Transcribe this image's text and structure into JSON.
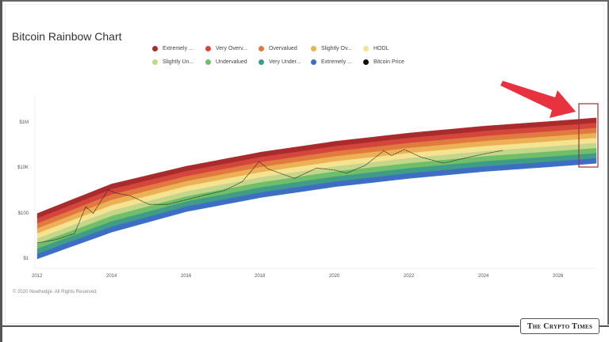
{
  "page": {
    "title": "Bitcoin Rainbow Chart",
    "copyright": "© 2020 Newhedge. All Rights Reserved.",
    "watermark": "The Crypto Times"
  },
  "legend": [
    {
      "label": "Extremely ...",
      "color": "#a92b2b"
    },
    {
      "label": "Very Overv...",
      "color": "#d4453c"
    },
    {
      "label": "Overvalued",
      "color": "#e07a3e"
    },
    {
      "label": "Slightly Ov...",
      "color": "#ecb155"
    },
    {
      "label": "HODL",
      "color": "#f4e391"
    },
    {
      "label": "Slightly Un...",
      "color": "#c4d68a"
    },
    {
      "label": "Undervalued",
      "color": "#6fbe6a"
    },
    {
      "label": "Very Under...",
      "color": "#3f9c86"
    },
    {
      "label": "Extremely ...",
      "color": "#3e6ec3"
    },
    {
      "label": "Bitcoin Price",
      "color": "#111111"
    }
  ],
  "annotation": {
    "arrow_color": "#e8323f",
    "highlight_box_color": "#9b2f3a",
    "note": "Red arrow pointing to highlighted right edge of rainbow bands (~2027)"
  },
  "chart_data": {
    "type": "area",
    "title": "Bitcoin Rainbow Chart",
    "xlabel": "",
    "ylabel": "",
    "y_scale": "log",
    "x_ticks": [
      "2012",
      "2014",
      "2016",
      "2018",
      "2020",
      "2022",
      "2024",
      "2026"
    ],
    "y_ticks": [
      "$1",
      "$100",
      "$10K",
      "$1M"
    ],
    "xlim": [
      2012,
      2027
    ],
    "ylim_approx": [
      0.5,
      100000000
    ],
    "grid": false,
    "legend_position": "top",
    "bands": [
      {
        "name": "Extremely Overvalued",
        "color": "#a92b2b"
      },
      {
        "name": "Very Overvalued",
        "color": "#d4453c"
      },
      {
        "name": "Overvalued",
        "color": "#e07a3e"
      },
      {
        "name": "Slightly Overvalued",
        "color": "#ecb155"
      },
      {
        "name": "HODL",
        "color": "#f4e391"
      },
      {
        "name": "Slightly Undervalued",
        "color": "#c4d68a"
      },
      {
        "name": "Undervalued",
        "color": "#6fbe6a"
      },
      {
        "name": "Very Undervalued",
        "color": "#3f9c86"
      },
      {
        "name": "Extremely Undervalued",
        "color": "#3e6ec3"
      }
    ],
    "band_envelope_approx": {
      "x": [
        2012,
        2014,
        2016,
        2018,
        2020,
        2022,
        2024,
        2026,
        2027
      ],
      "upper": [
        100,
        2000,
        12000,
        50000,
        150000,
        350000,
        700000,
        1200000,
        1600000
      ],
      "lower": [
        1,
        15,
        120,
        500,
        1500,
        3500,
        7000,
        12000,
        16000
      ]
    },
    "series": [
      {
        "name": "Bitcoin Price",
        "color": "#111111",
        "x": [
          2012.0,
          2012.5,
          2013.0,
          2013.3,
          2013.5,
          2013.9,
          2014.1,
          2014.5,
          2015.0,
          2015.5,
          2016.0,
          2016.5,
          2017.0,
          2017.5,
          2017.95,
          2018.2,
          2018.9,
          2019.5,
          2020.0,
          2020.3,
          2020.8,
          2021.3,
          2021.5,
          2021.85,
          2022.3,
          2022.9,
          2023.5,
          2024.0,
          2024.5
        ],
        "y": [
          5,
          7,
          13,
          200,
          100,
          1100,
          800,
          600,
          250,
          250,
          400,
          650,
          1000,
          2500,
          19000,
          9000,
          3500,
          10000,
          8000,
          6000,
          13000,
          58000,
          35000,
          65000,
          30000,
          16500,
          28000,
          42000,
          60000
        ]
      }
    ]
  }
}
